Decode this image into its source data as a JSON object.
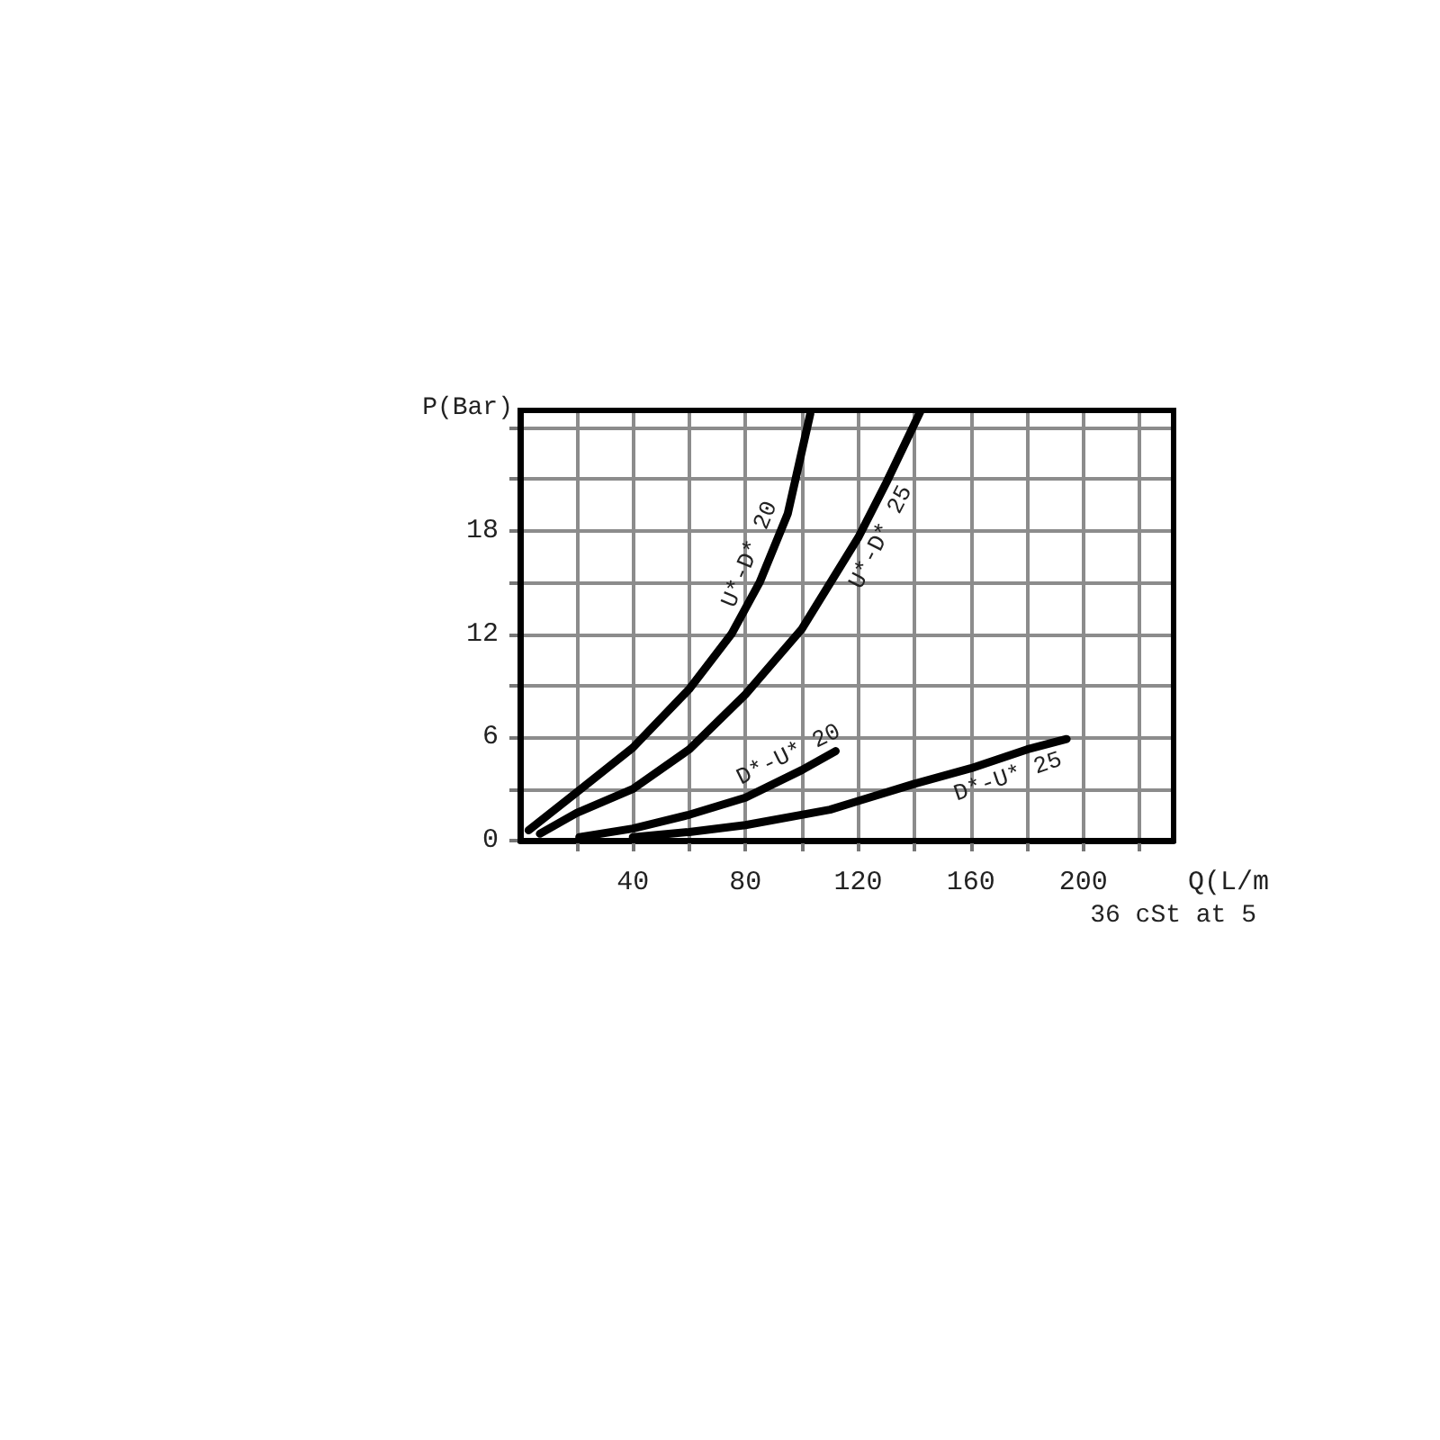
{
  "chart_data": {
    "type": "line",
    "xlabel": "Q(L/m",
    "ylabel": "P(Bar)",
    "annotations": [
      "36 cSt at 5"
    ],
    "xlim": [
      0,
      232
    ],
    "ylim": [
      0,
      25
    ],
    "xticks": [
      {
        "value": 20,
        "label": null
      },
      40,
      {
        "value": 60,
        "label": null
      },
      80,
      {
        "value": 100,
        "label": null
      },
      120,
      {
        "value": 140,
        "label": null
      },
      160,
      {
        "value": 180,
        "label": null
      },
      200,
      {
        "value": 220,
        "label": null
      }
    ],
    "yticks": [
      0,
      {
        "value": 3,
        "label": null
      },
      6,
      {
        "value": 9,
        "label": null
      },
      12,
      {
        "value": 15,
        "label": null
      },
      18,
      {
        "value": 21,
        "label": null
      },
      {
        "value": 24,
        "label": null
      }
    ],
    "grid": true,
    "marker": "none",
    "line_style": "solid",
    "series": [
      {
        "name": "U*-D* 20",
        "color": "#000000",
        "x": [
          3,
          20,
          40,
          60,
          75,
          85,
          95,
          103
        ],
        "values": [
          0.6,
          2.8,
          5.4,
          8.8,
          12,
          15,
          19,
          24.8
        ]
      },
      {
        "name": "U*-D* 25",
        "color": "#000000",
        "x": [
          7,
          20,
          40,
          60,
          80,
          100,
          120,
          130,
          142
        ],
        "values": [
          0.4,
          1.6,
          3.0,
          5.3,
          8.5,
          12.3,
          17.6,
          20.8,
          24.9
        ]
      },
      {
        "name": "D*-U* 20",
        "color": "#000000",
        "x": [
          21,
          40,
          60,
          80,
          100,
          112
        ],
        "values": [
          0.2,
          0.7,
          1.5,
          2.5,
          4.1,
          5.2
        ]
      },
      {
        "name": "D*-U* 25",
        "color": "#000000",
        "x": [
          40,
          60,
          80,
          110,
          120,
          140,
          160,
          180,
          194
        ],
        "values": [
          0.2,
          0.5,
          0.9,
          1.8,
          2.3,
          3.3,
          4.2,
          5.3,
          5.9
        ]
      }
    ]
  }
}
